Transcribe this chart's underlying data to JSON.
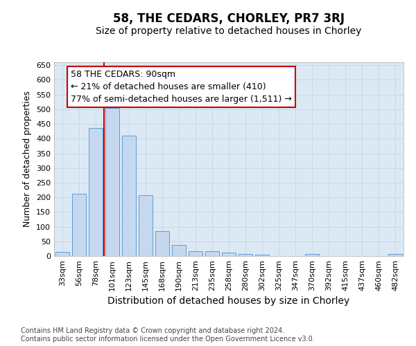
{
  "title1": "58, THE CEDARS, CHORLEY, PR7 3RJ",
  "title2": "Size of property relative to detached houses in Chorley",
  "xlabel": "Distribution of detached houses by size in Chorley",
  "ylabel": "Number of detached properties",
  "bar_labels": [
    "33sqm",
    "56sqm",
    "78sqm",
    "101sqm",
    "123sqm",
    "145sqm",
    "168sqm",
    "190sqm",
    "213sqm",
    "235sqm",
    "258sqm",
    "280sqm",
    "302sqm",
    "325sqm",
    "347sqm",
    "370sqm",
    "392sqm",
    "415sqm",
    "437sqm",
    "460sqm",
    "482sqm"
  ],
  "bar_values": [
    15,
    212,
    435,
    505,
    410,
    208,
    85,
    38,
    17,
    17,
    12,
    6,
    5,
    0,
    0,
    6,
    0,
    0,
    0,
    0,
    6
  ],
  "bar_color": "#c5d8f0",
  "bar_edge_color": "#5b9bd5",
  "vline_color": "#cc0000",
  "annotation_line1": "58 THE CEDARS: 90sqm",
  "annotation_line2": "← 21% of detached houses are smaller (410)",
  "annotation_line3": "77% of semi-detached houses are larger (1,511) →",
  "annotation_box_color": "#ffffff",
  "annotation_box_edge": "#cc0000",
  "ylim": [
    0,
    660
  ],
  "yticks": [
    0,
    50,
    100,
    150,
    200,
    250,
    300,
    350,
    400,
    450,
    500,
    550,
    600,
    650
  ],
  "grid_color": "#c8d8e8",
  "background_color": "#dce9f5",
  "footer_text": "Contains HM Land Registry data © Crown copyright and database right 2024.\nContains public sector information licensed under the Open Government Licence v3.0.",
  "title1_fontsize": 12,
  "title2_fontsize": 10,
  "xlabel_fontsize": 10,
  "ylabel_fontsize": 9,
  "tick_fontsize": 8,
  "annotation_fontsize": 9,
  "footer_fontsize": 7
}
